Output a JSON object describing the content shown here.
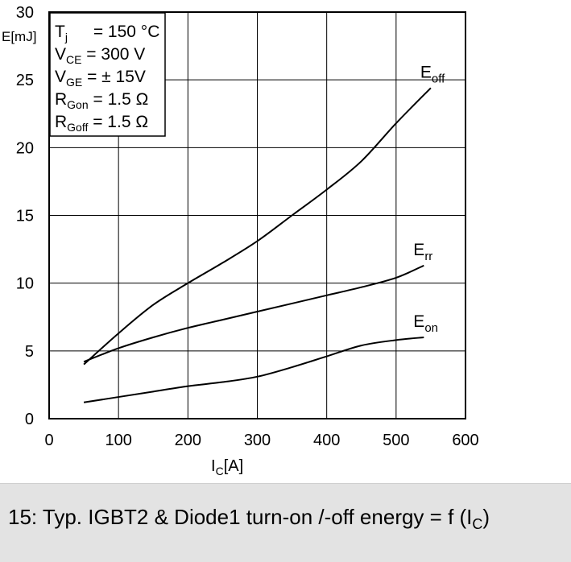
{
  "caption": {
    "main": "15: Typ. IGBT2 & Diode1 turn-on /-off energy = f (I",
    "sub": "C",
    "close": ")"
  },
  "conditions": [
    {
      "main": "T",
      "sub": "j",
      "rest": "= 150 °C"
    },
    {
      "main": "V",
      "sub": "CE",
      "rest": "= 300 V"
    },
    {
      "main": "V",
      "sub": "GE",
      "rest": "= ± 15V"
    },
    {
      "main": "R",
      "sub": "Gon",
      "rest": "= 1.5 Ω"
    },
    {
      "main": "R",
      "sub": "Goff",
      "rest": "= 1.5 Ω"
    }
  ],
  "chart_data": {
    "type": "line",
    "xlabel": {
      "main": "I",
      "sub": "C",
      "rest": "[A]"
    },
    "ylabel": "E[mJ]",
    "xlim": [
      0,
      600
    ],
    "ylim": [
      0,
      30
    ],
    "x_ticks": [
      0,
      100,
      200,
      300,
      400,
      500,
      600
    ],
    "y_ticks": [
      0,
      5,
      10,
      15,
      20,
      25,
      30
    ],
    "grid": true,
    "series": [
      {
        "name": "E_off",
        "label_main": "E",
        "label_sub": "off",
        "x": [
          50,
          100,
          150,
          200,
          250,
          300,
          350,
          400,
          450,
          500,
          550
        ],
        "y": [
          4.0,
          6.3,
          8.4,
          10.0,
          11.5,
          13.1,
          15.0,
          16.9,
          19.0,
          21.8,
          24.4
        ]
      },
      {
        "name": "E_rr",
        "label_main": "E",
        "label_sub": "rr",
        "x": [
          50,
          100,
          150,
          200,
          250,
          300,
          350,
          400,
          450,
          500,
          540
        ],
        "y": [
          4.2,
          5.2,
          6.0,
          6.7,
          7.3,
          7.9,
          8.5,
          9.1,
          9.7,
          10.4,
          11.3
        ]
      },
      {
        "name": "E_on",
        "label_main": "E",
        "label_sub": "on",
        "x": [
          50,
          100,
          150,
          200,
          250,
          300,
          350,
          400,
          450,
          500,
          540
        ],
        "y": [
          1.2,
          1.6,
          2.0,
          2.4,
          2.7,
          3.1,
          3.8,
          4.6,
          5.4,
          5.8,
          6.0
        ]
      }
    ]
  }
}
